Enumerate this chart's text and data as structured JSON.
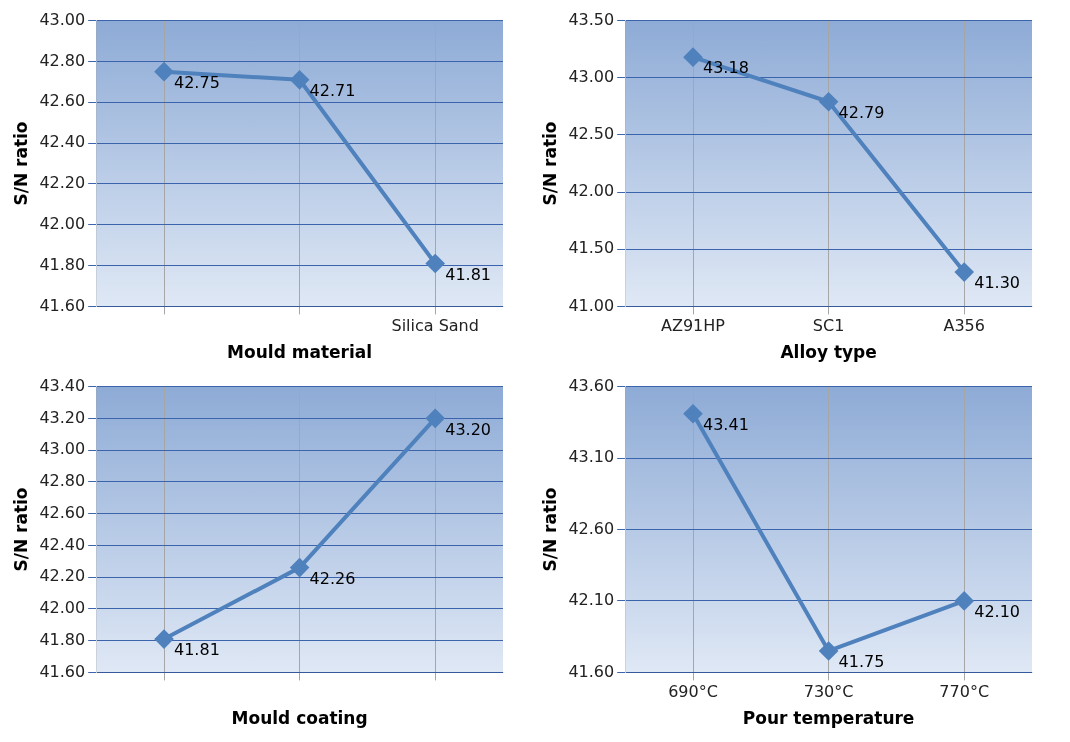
{
  "chart_data": [
    {
      "type": "line",
      "xlabel": "Mould material",
      "ylabel": "S/N ratio",
      "categories": [
        null,
        null,
        "Silica Sand"
      ],
      "series": [
        {
          "color": "#4f81bd",
          "values": [
            42.75,
            42.71,
            41.81
          ],
          "value_labels": [
            "42.75",
            "42.71",
            "41.81"
          ]
        }
      ],
      "ylim": [
        41.6,
        43.0
      ],
      "yticks": [
        {
          "value": 41.6,
          "label": "41.60"
        },
        {
          "value": 41.8,
          "label": "41.80"
        },
        {
          "value": 42.0,
          "label": "42.00"
        },
        {
          "value": 42.2,
          "label": "42.20"
        },
        {
          "value": 42.4,
          "label": "42.40"
        },
        {
          "value": 42.6,
          "label": "42.60"
        },
        {
          "value": 42.8,
          "label": "42.80"
        },
        {
          "value": 43.0,
          "label": "43.00"
        }
      ],
      "grid": true,
      "marker": "diamond"
    },
    {
      "type": "line",
      "xlabel": "Alloy type",
      "ylabel": "S/N ratio",
      "categories": [
        "AZ91HP",
        "SC1",
        "A356"
      ],
      "series": [
        {
          "color": "#4f81bd",
          "values": [
            43.18,
            42.79,
            41.3
          ],
          "value_labels": [
            "43.18",
            "42.79",
            "41.30"
          ]
        }
      ],
      "ylim": [
        41.0,
        43.5
      ],
      "yticks": [
        {
          "value": 41.0,
          "label": "41.00"
        },
        {
          "value": 41.5,
          "label": "41.50"
        },
        {
          "value": 42.0,
          "label": "42.00"
        },
        {
          "value": 42.5,
          "label": "42.50"
        },
        {
          "value": 43.0,
          "label": "43.00"
        },
        {
          "value": 43.5,
          "label": "43.50"
        }
      ],
      "grid": true,
      "marker": "diamond"
    },
    {
      "type": "line",
      "xlabel": "Mould coating",
      "ylabel": "S/N ratio",
      "categories": [
        null,
        null,
        null
      ],
      "series": [
        {
          "color": "#4f81bd",
          "values": [
            41.81,
            42.26,
            43.2
          ],
          "value_labels": [
            "41.81",
            "42.26",
            "43.20"
          ]
        }
      ],
      "ylim": [
        41.6,
        43.4
      ],
      "yticks": [
        {
          "value": 41.6,
          "label": "41.60"
        },
        {
          "value": 41.8,
          "label": "41.80"
        },
        {
          "value": 42.0,
          "label": "42.00"
        },
        {
          "value": 42.2,
          "label": "42.20"
        },
        {
          "value": 42.4,
          "label": "42.40"
        },
        {
          "value": 42.6,
          "label": "42.60"
        },
        {
          "value": 42.8,
          "label": "42.80"
        },
        {
          "value": 43.0,
          "label": "43.00"
        },
        {
          "value": 43.2,
          "label": "43.20"
        },
        {
          "value": 43.4,
          "label": "43.40"
        }
      ],
      "grid": true,
      "marker": "diamond"
    },
    {
      "type": "line",
      "xlabel": "Pour temperature",
      "ylabel": "S/N ratio",
      "categories": [
        "690°C",
        "730°C",
        "770°C"
      ],
      "series": [
        {
          "color": "#4f81bd",
          "values": [
            43.41,
            41.75,
            42.1
          ],
          "value_labels": [
            "43.41",
            "41.75",
            "42.10"
          ]
        }
      ],
      "ylim": [
        41.6,
        43.6
      ],
      "yticks": [
        {
          "value": 41.6,
          "label": "41.60"
        },
        {
          "value": 42.1,
          "label": "42.10"
        },
        {
          "value": 42.6,
          "label": "42.60"
        },
        {
          "value": 43.1,
          "label": "43.10"
        },
        {
          "value": 43.6,
          "label": "43.60"
        }
      ],
      "grid": true,
      "marker": "diamond"
    }
  ]
}
